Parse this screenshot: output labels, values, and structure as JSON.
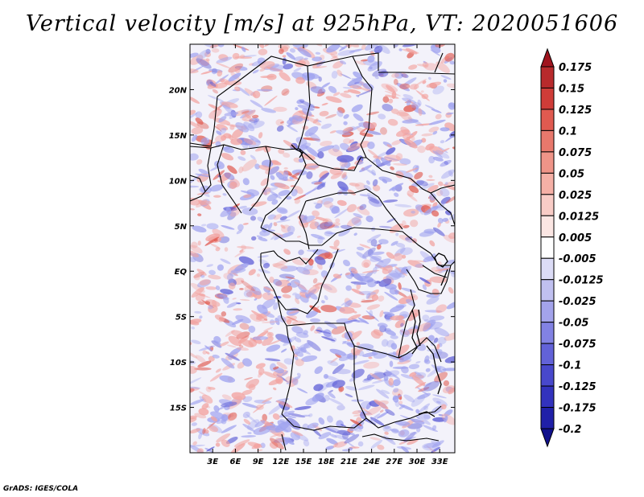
{
  "title": "Vertical velocity [m/s] at 925hPa, VT: 2020051606",
  "credit": "GrADS: IGES/COLA",
  "map": {
    "lat_labels": [
      "20N",
      "15N",
      "10N",
      "5N",
      "EQ",
      "5S",
      "10S",
      "15S"
    ],
    "lat_values": [
      20,
      15,
      10,
      5,
      0,
      -5,
      -10,
      -15
    ],
    "lon_labels": [
      "3E",
      "6E",
      "9E",
      "12E",
      "15E",
      "18E",
      "21E",
      "24E",
      "27E",
      "30E",
      "33E"
    ],
    "lon_values": [
      3,
      6,
      9,
      12,
      15,
      18,
      21,
      24,
      27,
      30,
      33
    ],
    "lat_range": [
      -20,
      25
    ],
    "lon_range": [
      0,
      35
    ],
    "colors": {
      "positive_dominant": "#f2a3a0",
      "negative_dominant": "#9fa2ef",
      "border": "#000000"
    }
  },
  "colorbar": {
    "labels": [
      "0.175",
      "0.15",
      "0.125",
      "0.1",
      "0.075",
      "0.05",
      "0.025",
      "0.0125",
      "0.005",
      "-0.005",
      "-0.0125",
      "-0.025",
      "-0.05",
      "-0.075",
      "-0.1",
      "-0.125",
      "-0.175",
      "-0.2"
    ],
    "colors": [
      "#a0141e",
      "#b82a2c",
      "#cf3c38",
      "#e05a50",
      "#e8786c",
      "#ef9488",
      "#f5b0a6",
      "#f8ccc6",
      "#fbe6e3",
      "#ffffff",
      "#dcdcf6",
      "#c0c0f0",
      "#a3a3eb",
      "#8282e3",
      "#6262d8",
      "#4848cc",
      "#3232bd",
      "#2020a8",
      "#10108c"
    ]
  }
}
